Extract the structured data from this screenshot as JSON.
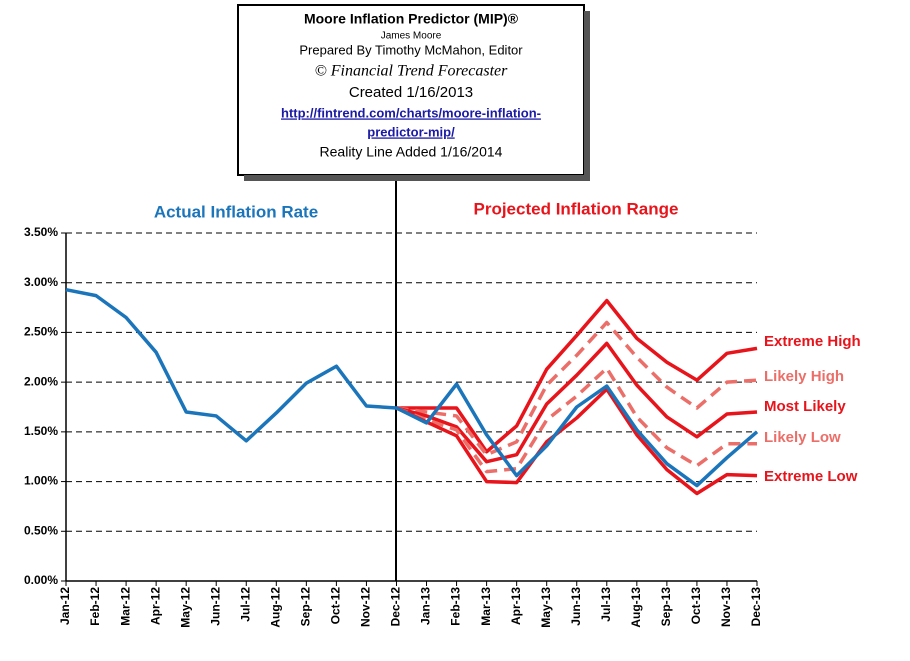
{
  "chart_data": {
    "type": "line",
    "title": "Moore Inflation Predictor (MIP)®",
    "subtitle": "James Moore",
    "credit": "Prepared  By Timothy McMahon, Editor",
    "publisher": "© Financial Trend Forecaster",
    "created": "Created  1/16/2013",
    "link_lines": [
      "http://fintrend.com/charts/moore-inflation-",
      "predictor-mip/"
    ],
    "reality_note": "Reality Line  Added  1/16/2014",
    "annotations": [
      "Actual Inflation Rate",
      "Projected Inflation Range"
    ],
    "categories": [
      "Jan-12",
      "Feb-12",
      "Mar-12",
      "Apr-12",
      "May-12",
      "Jun-12",
      "Jul-12",
      "Aug-12",
      "Sep-12",
      "Oct-12",
      "Nov-12",
      "Dec-12",
      "Jan-13",
      "Feb-13",
      "Mar-13",
      "Apr-13",
      "May-13",
      "Jun-13",
      "Jul-13",
      "Aug-13",
      "Sep-13",
      "Oct-13",
      "Nov-13",
      "Dec-13"
    ],
    "ylim": [
      0,
      3.5
    ],
    "yticks": [
      {
        "value": 0,
        "label": "0.00%"
      },
      {
        "value": 0.5,
        "label": "0.50%"
      },
      {
        "value": 1,
        "label": "1.00%"
      },
      {
        "value": 1.5,
        "label": "1.50%"
      },
      {
        "value": 2,
        "label": "2.00%"
      },
      {
        "value": 2.5,
        "label": "2.50%"
      },
      {
        "value": 3,
        "label": "3.00%"
      },
      {
        "value": 3.5,
        "label": "3.50%"
      }
    ],
    "grid": true,
    "series": [
      {
        "name": "Extreme High",
        "color": "#e8141b",
        "style": "solid",
        "values": [
          null,
          null,
          null,
          null,
          null,
          null,
          null,
          null,
          null,
          null,
          null,
          1.74,
          1.74,
          1.74,
          1.3,
          1.56,
          2.13,
          2.47,
          2.82,
          2.44,
          2.2,
          2.02,
          2.29,
          2.34
        ]
      },
      {
        "name": "Likely High",
        "color": "#ec6e68",
        "style": "dashed",
        "values": [
          null,
          null,
          null,
          null,
          null,
          null,
          null,
          null,
          null,
          null,
          null,
          1.74,
          1.7,
          1.66,
          1.27,
          1.4,
          1.97,
          2.27,
          2.6,
          2.25,
          1.95,
          1.74,
          2.0,
          2.02
        ]
      },
      {
        "name": "Most Likely",
        "color": "#e8141b",
        "style": "solid",
        "values": [
          null,
          null,
          null,
          null,
          null,
          null,
          null,
          null,
          null,
          null,
          null,
          1.74,
          1.66,
          1.55,
          1.2,
          1.27,
          1.78,
          2.07,
          2.39,
          1.97,
          1.65,
          1.45,
          1.68,
          1.7
        ]
      },
      {
        "name": "Likely Low",
        "color": "#ec6e68",
        "style": "dashed",
        "values": [
          null,
          null,
          null,
          null,
          null,
          null,
          null,
          null,
          null,
          null,
          null,
          1.74,
          1.62,
          1.52,
          1.1,
          1.13,
          1.62,
          1.86,
          2.14,
          1.65,
          1.34,
          1.16,
          1.38,
          1.38
        ]
      },
      {
        "name": "Extreme Low",
        "color": "#e8141b",
        "style": "solid",
        "values": [
          null,
          null,
          null,
          null,
          null,
          null,
          null,
          null,
          null,
          null,
          null,
          1.74,
          1.6,
          1.46,
          1.0,
          0.99,
          1.4,
          1.64,
          1.93,
          1.47,
          1.12,
          0.88,
          1.07,
          1.06
        ]
      },
      {
        "name": "Actual Inflation",
        "color": "#1b75bb",
        "style": "solid",
        "show_label": false,
        "values": [
          2.93,
          2.87,
          2.65,
          2.3,
          1.7,
          1.66,
          1.41,
          1.69,
          1.99,
          2.16,
          1.76,
          1.74,
          1.59,
          1.98,
          1.47,
          1.06,
          1.36,
          1.75,
          1.96,
          1.52,
          1.18,
          0.96,
          1.24,
          1.5
        ]
      }
    ]
  }
}
